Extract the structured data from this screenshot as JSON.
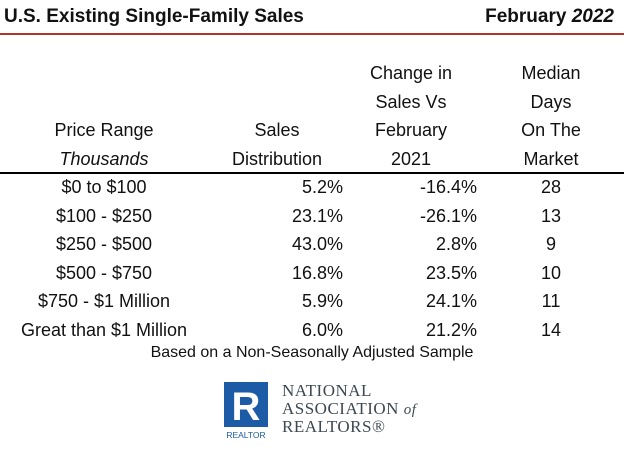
{
  "title": {
    "left": "U.S. Existing Single-Family Sales",
    "month": "February",
    "year": "2022"
  },
  "headers": {
    "price_range": [
      "Price Range",
      "Thousands"
    ],
    "sales_distribution": [
      "Sales",
      "Distribution"
    ],
    "change": [
      "Change in",
      "Sales Vs",
      "February",
      "2021"
    ],
    "median_days": [
      "Median",
      "Days",
      "On The",
      "Market"
    ]
  },
  "rows": [
    {
      "range": "$0 to $100",
      "distribution": "5.2%",
      "change": "-16.4%",
      "days": "28"
    },
    {
      "range": "$100 - $250",
      "distribution": "23.1%",
      "change": "-26.1%",
      "days": "13"
    },
    {
      "range": "$250 - $500",
      "distribution": "43.0%",
      "change": "2.8%",
      "days": "9"
    },
    {
      "range": "$500 - $750",
      "distribution": "16.8%",
      "change": "23.5%",
      "days": "10"
    },
    {
      "range": "$750 - $1 Million",
      "distribution": "5.9%",
      "change": "24.1%",
      "days": "11"
    },
    {
      "range": "Great than $1 Million",
      "distribution": "6.0%",
      "change": "21.2%",
      "days": "14"
    }
  ],
  "note": "Based on a Non-Seasonally Adjusted Sample",
  "logo": {
    "line1": "NATIONAL",
    "line2": "ASSOCIATION",
    "line2_of": "of",
    "line3": "REALTORS®",
    "mark_label": "REALTOR",
    "mark_letter": "R"
  },
  "colors": {
    "title_rule": "#b5312b",
    "logo_blue": "#1c5ba6",
    "logo_text": "#3d4852"
  }
}
